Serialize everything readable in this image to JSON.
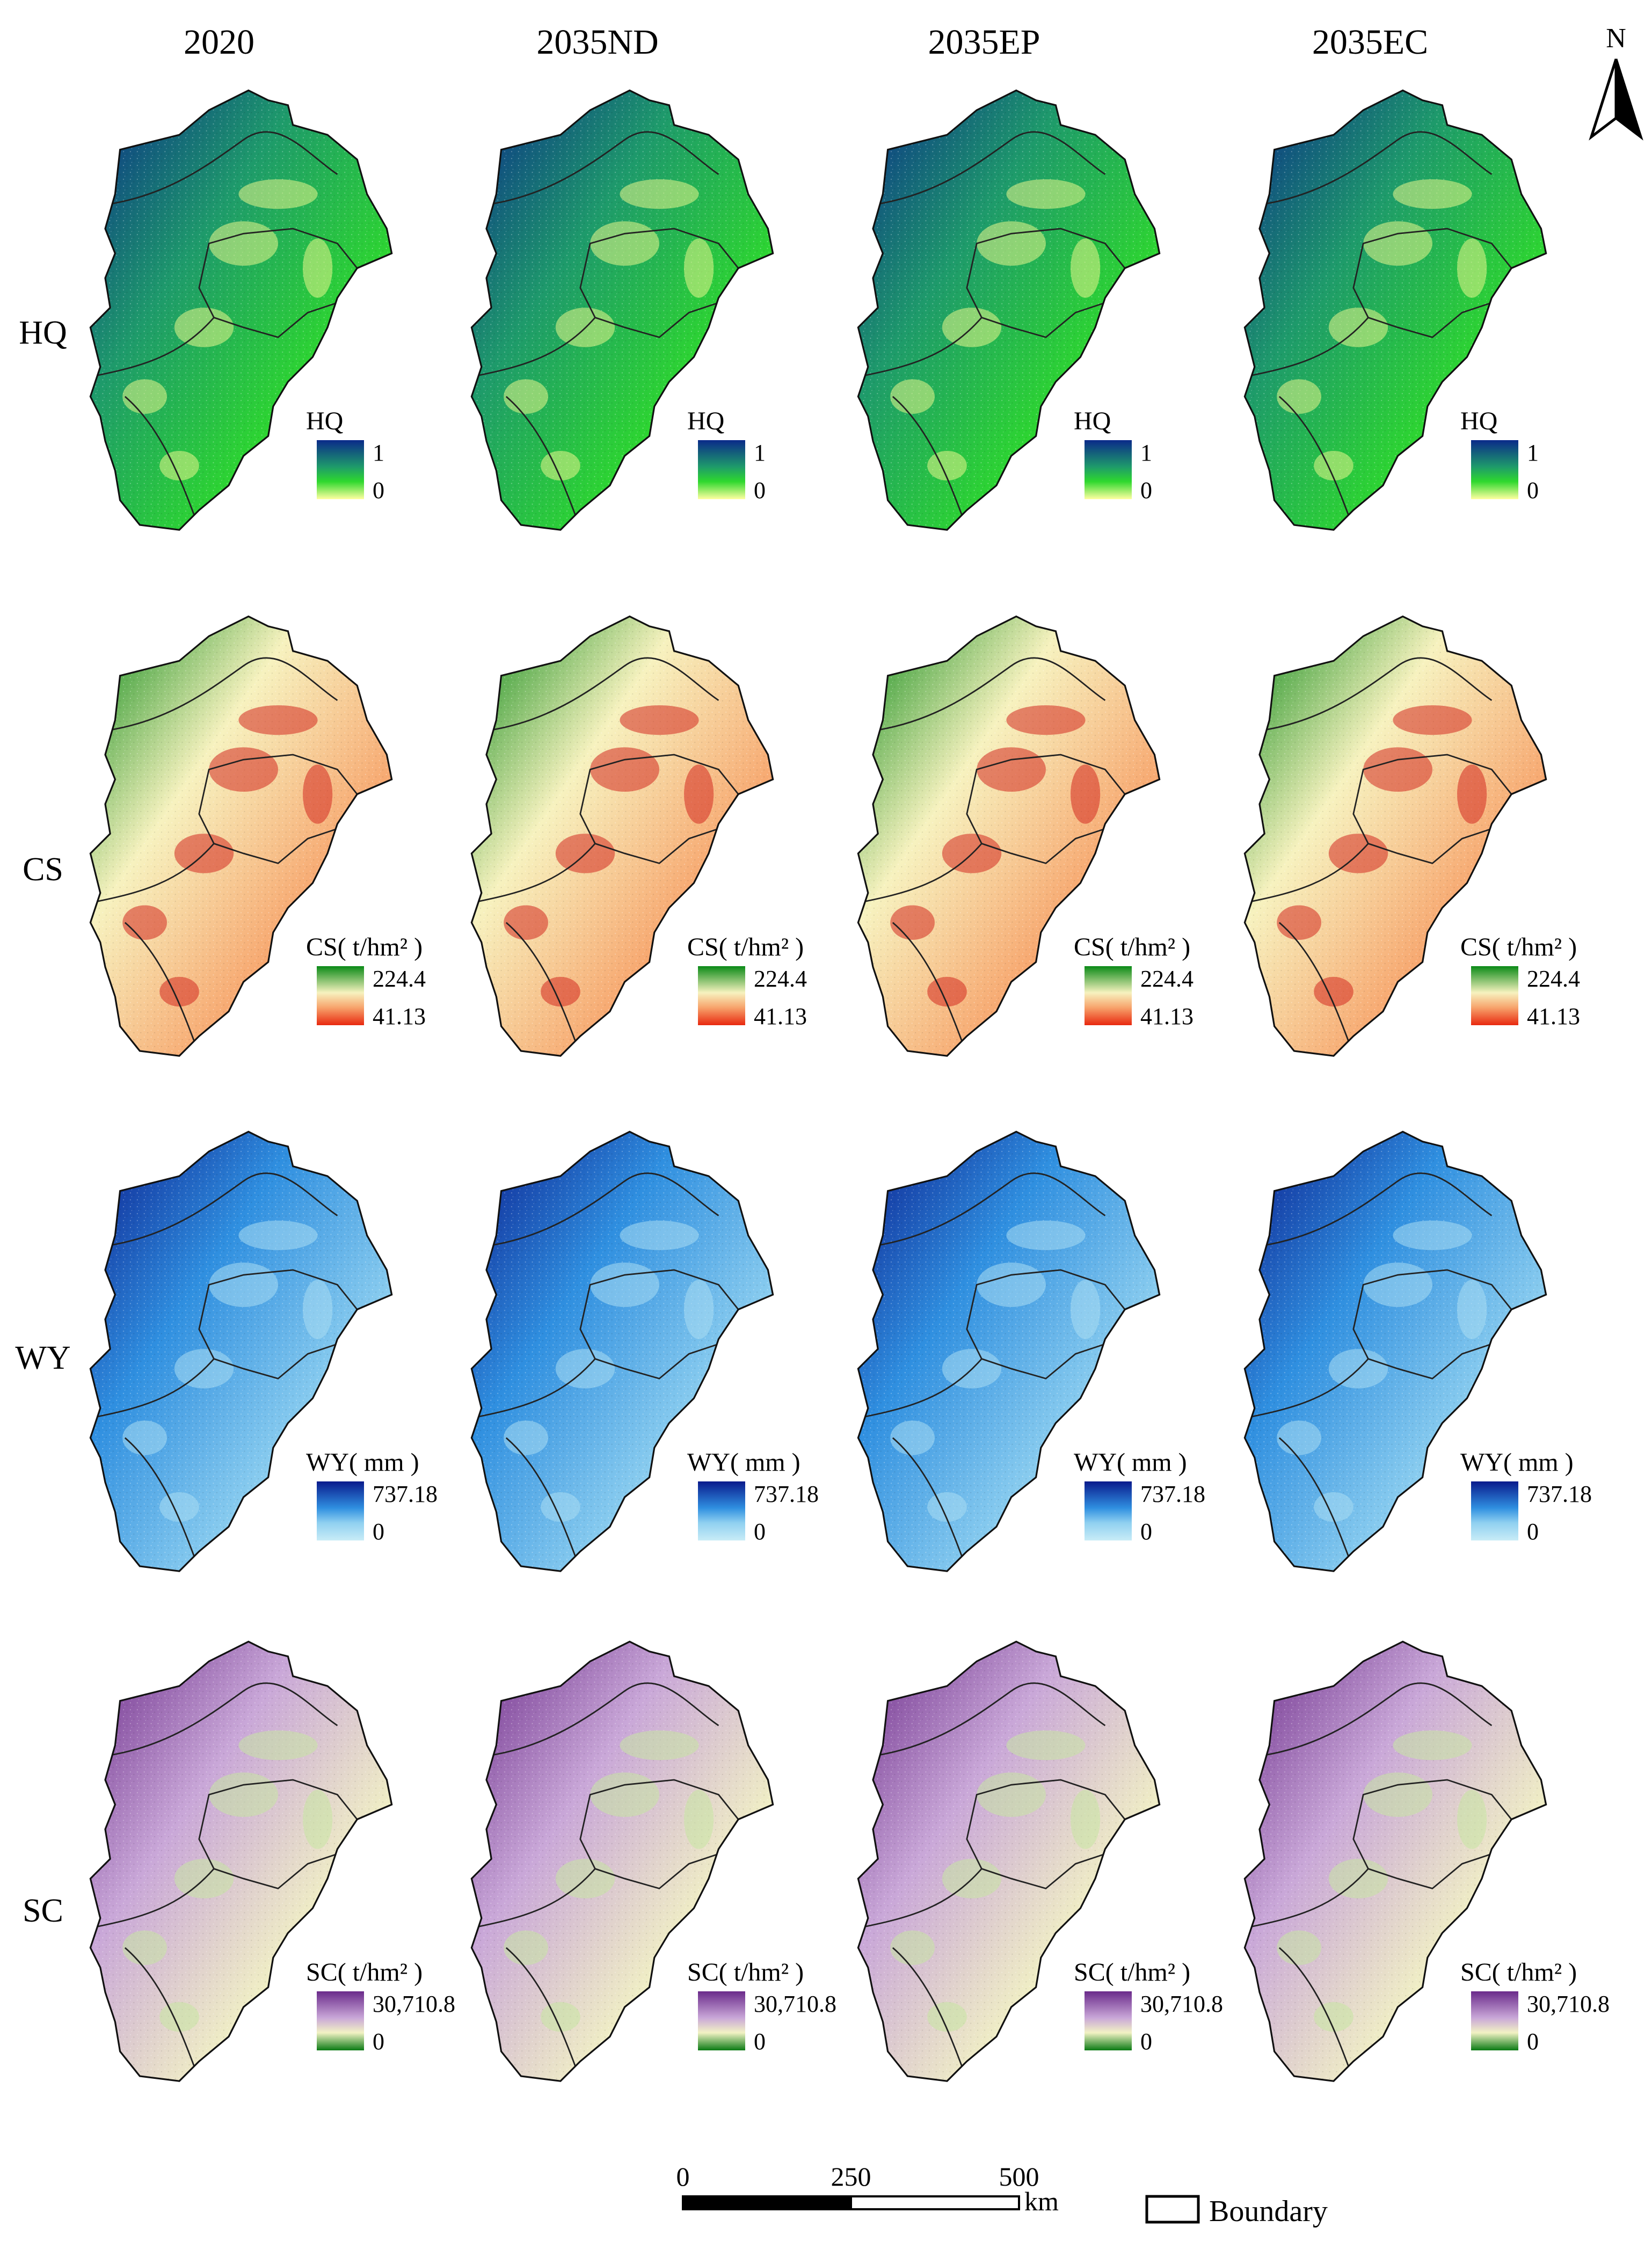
{
  "columns": [
    "2020",
    "2035ND",
    "2035EP",
    "2035EC"
  ],
  "rows": [
    {
      "id": "hq",
      "label": "HQ",
      "legend_title": "HQ",
      "legend_max": "1",
      "legend_min": "0",
      "colors": [
        "#ffffa0",
        "#2ed82e",
        "#1e9a6b",
        "#0a2a8a"
      ],
      "texture": "#e7f58a"
    },
    {
      "id": "cs",
      "label": "CS",
      "legend_title": "CS( t/hm² )",
      "legend_max": "224.4",
      "legend_min": "41.13",
      "colors": [
        "#e8280f",
        "#f7a46c",
        "#f7f2bf",
        "#0a8a17"
      ],
      "texture": "#d42a20"
    },
    {
      "id": "wy",
      "label": "WY",
      "legend_title": "WY( mm )",
      "legend_max": "737.18",
      "legend_min": "0",
      "colors": [
        "#c8ecf7",
        "#8fd0f0",
        "#2f8fe0",
        "#0a1a8c"
      ],
      "texture": "#a9dcf2"
    },
    {
      "id": "sc",
      "label": "SC",
      "legend_title": "SC( t/hm² )",
      "legend_max": "30,710.8",
      "legend_min": "0",
      "colors": [
        "#0a7a14",
        "#f2f2c4",
        "#c9a7d8",
        "#6a2a8a"
      ],
      "texture": "#c7e6a2"
    }
  ],
  "north_arrow": {
    "label": "N"
  },
  "scale_bar": {
    "ticks": [
      "0",
      "250",
      "500"
    ],
    "unit": "km"
  },
  "boundary_legend": {
    "label": "Boundary"
  }
}
